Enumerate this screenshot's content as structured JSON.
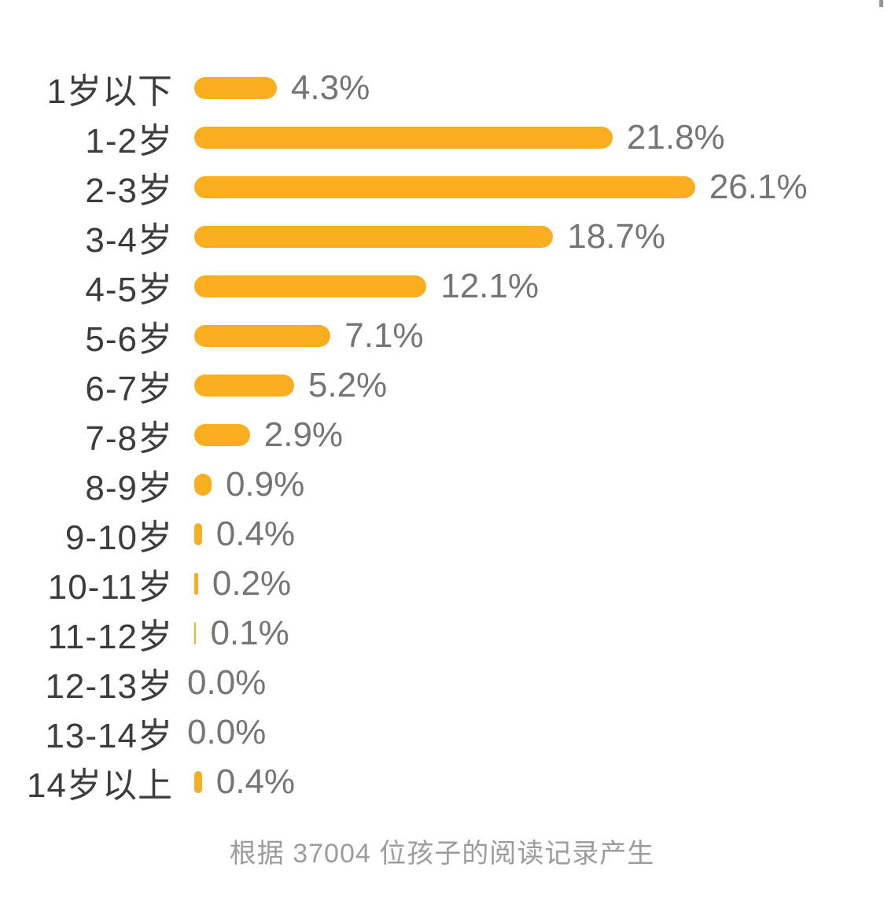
{
  "chart_data": {
    "type": "bar",
    "orientation": "horizontal",
    "title": "",
    "xlabel": "",
    "ylabel": "",
    "xlim": [
      0,
      26.1
    ],
    "grid": false,
    "legend": false,
    "bar_color": "#f9ae20",
    "categories": [
      "1岁以下",
      "1-2岁",
      "2-3岁",
      "3-4岁",
      "4-5岁",
      "5-6岁",
      "6-7岁",
      "7-8岁",
      "8-9岁",
      "9-10岁",
      "10-11岁",
      "11-12岁",
      "12-13岁",
      "13-14岁",
      "14岁以上"
    ],
    "values": [
      4.3,
      21.8,
      26.1,
      18.7,
      12.1,
      7.1,
      5.2,
      2.9,
      0.9,
      0.4,
      0.2,
      0.1,
      0.0,
      0.0,
      0.4
    ],
    "value_labels": [
      "4.3%",
      "21.8%",
      "26.1%",
      "18.7%",
      "12.1%",
      "7.1%",
      "5.2%",
      "2.9%",
      "0.9%",
      "0.4%",
      "0.2%",
      "0.1%",
      "0.0%",
      "0.0%",
      "0.4%"
    ],
    "footnote": "根据 37004 位孩子的阅读记录产生"
  },
  "colors": {
    "bar": "#f9ae20",
    "category_label": "#3c3c3c",
    "value_label": "#757575",
    "footnote": "#9c9c9c",
    "background": "#ffffff"
  }
}
